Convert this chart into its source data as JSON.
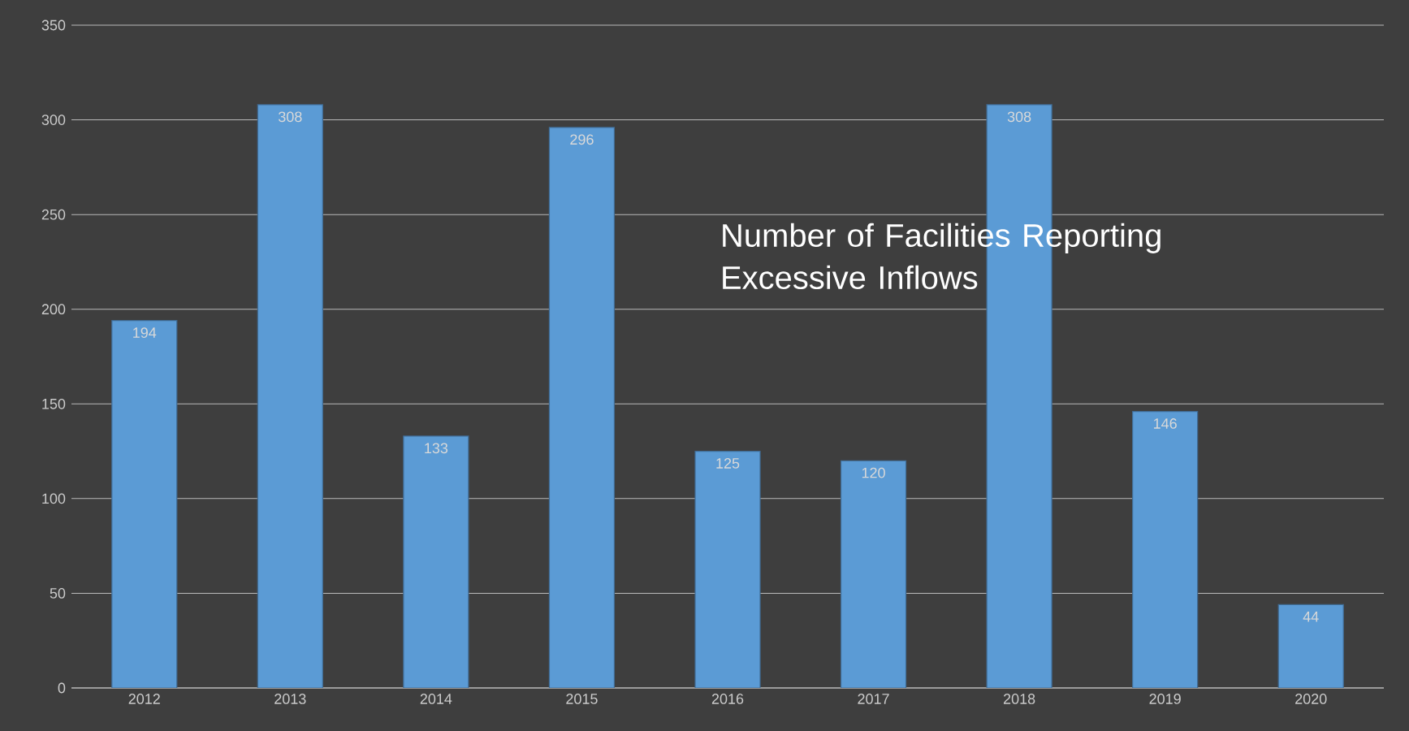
{
  "chart_data": {
    "type": "bar",
    "title": "Number of Facilities Reporting Excessive Inflows",
    "categories": [
      "2012",
      "2013",
      "2014",
      "2015",
      "2016",
      "2017",
      "2018",
      "2019",
      "2020"
    ],
    "values": [
      194,
      308,
      133,
      296,
      125,
      120,
      308,
      146,
      44
    ],
    "color": "#5b9bd5",
    "ylim": [
      0,
      350
    ],
    "yticks": [
      0,
      50,
      100,
      150,
      200,
      250,
      300,
      350
    ],
    "grid": "y",
    "data_labels": true
  }
}
